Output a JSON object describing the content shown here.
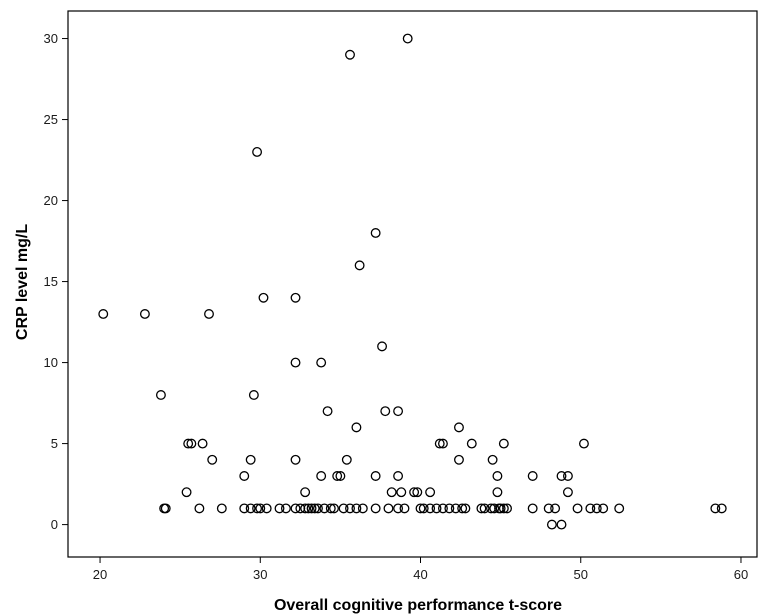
{
  "chart_data": {
    "type": "scatter",
    "title": "",
    "xlabel": "Overall cognitive performance t-score",
    "ylabel": "CRP level mg/L",
    "xlim": [
      18,
      61
    ],
    "ylim": [
      -2,
      31.7
    ],
    "x_ticks": [
      20,
      30,
      40,
      50,
      60
    ],
    "y_ticks": [
      0,
      5,
      10,
      15,
      20,
      25,
      30
    ],
    "grid": false,
    "legend": "none",
    "marker": "open-circle",
    "colors": {
      "marker_stroke": "#000000",
      "axis": "#000000",
      "background": "#ffffff"
    },
    "points": [
      [
        20.2,
        13
      ],
      [
        22.8,
        13
      ],
      [
        23.8,
        8
      ],
      [
        24.0,
        1
      ],
      [
        24.1,
        1
      ],
      [
        25.4,
        2
      ],
      [
        25.5,
        5
      ],
      [
        25.7,
        5
      ],
      [
        26.2,
        1
      ],
      [
        26.4,
        5
      ],
      [
        26.8,
        13
      ],
      [
        27.0,
        4
      ],
      [
        27.6,
        1
      ],
      [
        29.0,
        3
      ],
      [
        29.0,
        1
      ],
      [
        29.4,
        4
      ],
      [
        29.4,
        1
      ],
      [
        29.6,
        8
      ],
      [
        29.8,
        23
      ],
      [
        29.8,
        1
      ],
      [
        30.0,
        1
      ],
      [
        30.2,
        14
      ],
      [
        30.4,
        1
      ],
      [
        31.2,
        1
      ],
      [
        31.6,
        1
      ],
      [
        32.2,
        14
      ],
      [
        32.2,
        10
      ],
      [
        32.2,
        4
      ],
      [
        32.2,
        1
      ],
      [
        32.5,
        1
      ],
      [
        32.8,
        2
      ],
      [
        32.8,
        1
      ],
      [
        33.0,
        1
      ],
      [
        33.2,
        1
      ],
      [
        33.4,
        1
      ],
      [
        33.6,
        1
      ],
      [
        33.8,
        10
      ],
      [
        33.8,
        3
      ],
      [
        34.0,
        1
      ],
      [
        34.2,
        7
      ],
      [
        34.4,
        1
      ],
      [
        34.6,
        1
      ],
      [
        34.8,
        3
      ],
      [
        35.0,
        3
      ],
      [
        35.2,
        1
      ],
      [
        35.4,
        4
      ],
      [
        35.6,
        29
      ],
      [
        35.6,
        1
      ],
      [
        36.0,
        6
      ],
      [
        36.0,
        1
      ],
      [
        36.2,
        16
      ],
      [
        36.4,
        1
      ],
      [
        37.2,
        18
      ],
      [
        37.2,
        3
      ],
      [
        37.2,
        1
      ],
      [
        37.6,
        11
      ],
      [
        37.8,
        7
      ],
      [
        38.0,
        1
      ],
      [
        38.2,
        2
      ],
      [
        38.6,
        7
      ],
      [
        38.6,
        3
      ],
      [
        38.6,
        1
      ],
      [
        38.8,
        2
      ],
      [
        39.0,
        1
      ],
      [
        39.2,
        30
      ],
      [
        39.6,
        2
      ],
      [
        39.8,
        2
      ],
      [
        40.0,
        1
      ],
      [
        40.2,
        1
      ],
      [
        40.6,
        2
      ],
      [
        40.6,
        1
      ],
      [
        41.0,
        1
      ],
      [
        41.2,
        5
      ],
      [
        41.4,
        5
      ],
      [
        41.4,
        1
      ],
      [
        41.8,
        1
      ],
      [
        42.2,
        1
      ],
      [
        42.4,
        6
      ],
      [
        42.4,
        4
      ],
      [
        42.6,
        1
      ],
      [
        42.8,
        1
      ],
      [
        43.2,
        5
      ],
      [
        43.8,
        1
      ],
      [
        44.0,
        1
      ],
      [
        44.4,
        1
      ],
      [
        44.5,
        4
      ],
      [
        44.6,
        1
      ],
      [
        44.8,
        3
      ],
      [
        44.8,
        2
      ],
      [
        44.9,
        1
      ],
      [
        45.0,
        1
      ],
      [
        45.2,
        5
      ],
      [
        45.2,
        1
      ],
      [
        45.4,
        1
      ],
      [
        47.0,
        3
      ],
      [
        47.0,
        1
      ],
      [
        48.0,
        1
      ],
      [
        48.2,
        0
      ],
      [
        48.4,
        1
      ],
      [
        48.8,
        3
      ],
      [
        48.8,
        0
      ],
      [
        49.2,
        3
      ],
      [
        49.2,
        2
      ],
      [
        49.8,
        1
      ],
      [
        50.2,
        5
      ],
      [
        50.6,
        1
      ],
      [
        51.0,
        1
      ],
      [
        51.4,
        1
      ],
      [
        52.4,
        1
      ],
      [
        58.4,
        1
      ],
      [
        58.8,
        1
      ]
    ]
  }
}
